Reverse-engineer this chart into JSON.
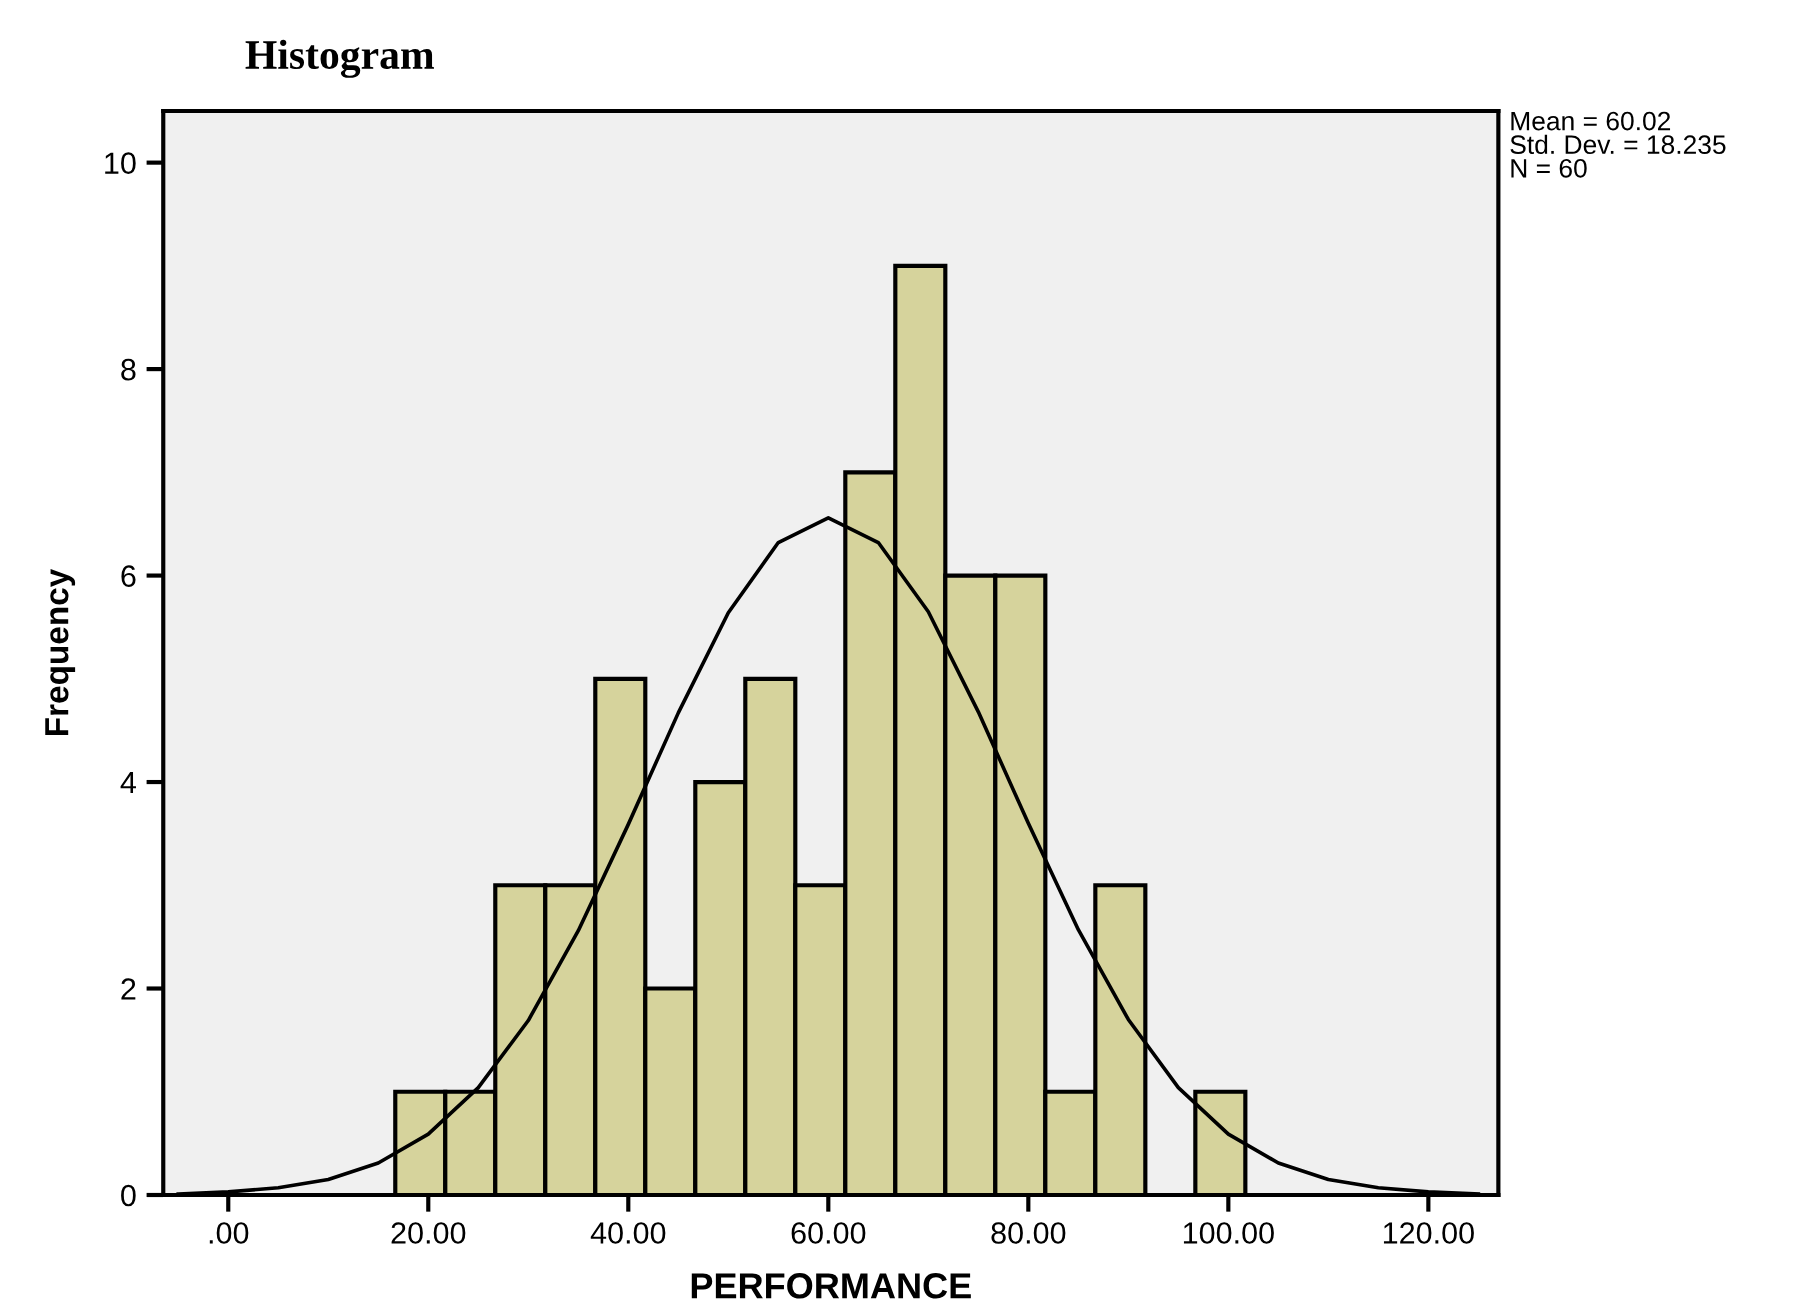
{
  "chart_data": {
    "type": "histogram",
    "title": "Histogram",
    "xlabel": "PERFORMANCE",
    "ylabel": "Frequency",
    "bins": [
      16.7,
      21.7,
      26.7,
      31.7,
      36.7,
      41.7,
      46.7,
      51.7,
      56.7,
      61.7,
      66.7,
      71.7,
      76.7,
      81.7,
      86.7,
      91.7,
      96.7,
      101.7
    ],
    "values": [
      1,
      1,
      3,
      3,
      5,
      2,
      4,
      5,
      3,
      7,
      9,
      6,
      6,
      1,
      3,
      0,
      1
    ],
    "color": "#d6d39c",
    "series": [
      {
        "type": "line",
        "color": "#000000",
        "x": [
          -5,
          0,
          5,
          10,
          15,
          20,
          25,
          30,
          35,
          40,
          45,
          50,
          55,
          60,
          65,
          70,
          75,
          80,
          85,
          90,
          95,
          100,
          105,
          110,
          115,
          120,
          125
        ],
        "values": [
          0.01,
          0.03,
          0.07,
          0.15,
          0.31,
          0.59,
          1.04,
          1.69,
          2.56,
          3.59,
          4.67,
          5.64,
          6.32,
          6.56,
          6.32,
          5.65,
          4.68,
          3.6,
          2.57,
          1.7,
          1.04,
          0.59,
          0.31,
          0.15,
          0.07,
          0.03,
          0.01
        ]
      }
    ],
    "annotations": [
      "Mean = 60.02\nStd. Dev. = 18.235\nN = 60"
    ],
    "xlim": [
      -6.5,
      127
    ],
    "ylim": [
      0,
      10.5
    ],
    "xticks": [
      {
        "value": 0,
        "label": ".00"
      },
      {
        "value": 20,
        "label": "20.00"
      },
      {
        "value": 40,
        "label": "40.00"
      },
      {
        "value": 60,
        "label": "60.00"
      },
      {
        "value": 80,
        "label": "80.00"
      },
      {
        "value": 100,
        "label": "100.00"
      },
      {
        "value": 120,
        "label": "120.00"
      }
    ],
    "yticks": [
      0,
      2,
      4,
      6,
      8,
      10
    ],
    "grid": false,
    "legend": false
  }
}
